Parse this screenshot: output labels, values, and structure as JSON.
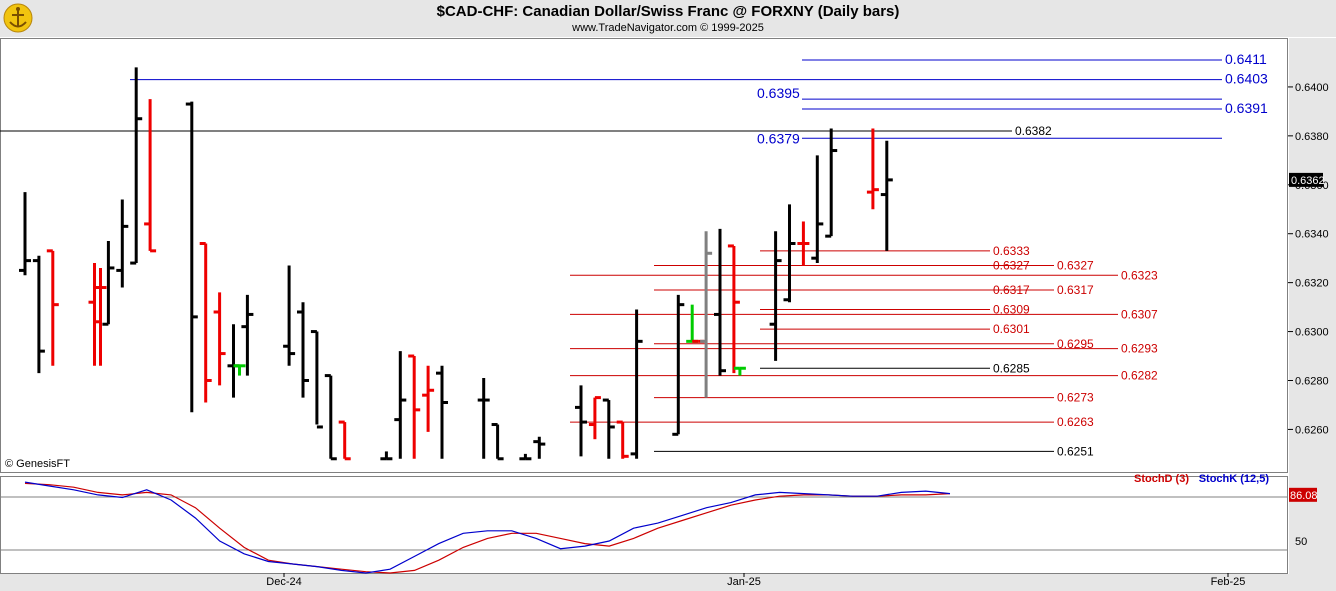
{
  "header": {
    "title": "$CAD-CHF:  Canadian Dollar/Swiss Franc @ FORXNY  (Daily bars)",
    "subtitle": "www.TradeNavigator.com © 1999-2025"
  },
  "watermark": "© GenesisFT",
  "colors": {
    "up_bar": "#000000",
    "down_bar": "#ee0000",
    "special_up": "#00cc00",
    "special_gray": "#808080",
    "resistance": "#0000cc",
    "support": "#cc0000",
    "stoch_d": "#cc0000",
    "stoch_k": "#0000cc",
    "last_price_bg": "#000000",
    "stoch_value_bg": "#cc0000"
  },
  "chart_data": [
    {
      "type": "ohlc",
      "name": "price",
      "y_axis": {
        "ticks": [
          "0.6260",
          "0.6280",
          "0.6300",
          "0.6320",
          "0.6340",
          "0.6360",
          "0.6380",
          "0.6400"
        ],
        "ylim": [
          0.6243,
          0.642
        ]
      },
      "x_axis": {
        "ticks": [
          "Dec-24",
          "Jan-25",
          "Feb-25"
        ]
      },
      "last_price": "0.6362",
      "bars": [
        {
          "date": "2024-11-20",
          "o": 0.6325,
          "h": 0.6357,
          "l": 0.6323,
          "c": 0.6329,
          "color": "up"
        },
        {
          "date": "2024-11-21",
          "o": 0.6329,
          "h": 0.6331,
          "l": 0.6283,
          "c": 0.6292,
          "color": "up"
        },
        {
          "date": "2024-11-22",
          "o": 0.6333,
          "h": 0.6333,
          "l": 0.6286,
          "c": 0.6311,
          "color": "down"
        },
        {
          "date": "2024-11-25",
          "o": 0.6312,
          "h": 0.6328,
          "l": 0.6286,
          "c": 0.6304,
          "color": "down"
        },
        {
          "date": "2024-11-25",
          "o": 0.6318,
          "h": 0.6326,
          "l": 0.6286,
          "c": 0.6318,
          "color": "down"
        },
        {
          "date": "2024-11-26",
          "o": 0.6303,
          "h": 0.6337,
          "l": 0.6303,
          "c": 0.6326,
          "color": "up"
        },
        {
          "date": "2024-11-27",
          "o": 0.6325,
          "h": 0.6354,
          "l": 0.6318,
          "c": 0.6343,
          "color": "up"
        },
        {
          "date": "2024-11-28",
          "o": 0.6328,
          "h": 0.6408,
          "l": 0.6328,
          "c": 0.6387,
          "color": "up"
        },
        {
          "date": "2024-11-29",
          "o": 0.6344,
          "h": 0.6395,
          "l": 0.6333,
          "c": 0.6333,
          "color": "down"
        },
        {
          "date": "2024-12-02",
          "o": 0.6393,
          "h": 0.6394,
          "l": 0.6267,
          "c": 0.6306,
          "color": "up"
        },
        {
          "date": "2024-12-03",
          "o": 0.6336,
          "h": 0.6336,
          "l": 0.6271,
          "c": 0.628,
          "color": "down"
        },
        {
          "date": "2024-12-04",
          "o": 0.6308,
          "h": 0.6316,
          "l": 0.6278,
          "c": 0.6291,
          "color": "down"
        },
        {
          "date": "2024-12-05",
          "o": 0.6286,
          "h": 0.6303,
          "l": 0.6273,
          "c": 0.6286,
          "color": "up"
        },
        {
          "date": "2024-12-05",
          "o": 0.6286,
          "h": 0.6286,
          "l": 0.6282,
          "c": 0.6286,
          "color": "special_up"
        },
        {
          "date": "2024-12-06",
          "o": 0.6302,
          "h": 0.6315,
          "l": 0.6282,
          "c": 0.6307,
          "color": "up"
        },
        {
          "date": "2024-12-09",
          "o": 0.6294,
          "h": 0.6327,
          "l": 0.6286,
          "c": 0.6291,
          "color": "up"
        },
        {
          "date": "2024-12-10",
          "o": 0.6308,
          "h": 0.6312,
          "l": 0.6273,
          "c": 0.628,
          "color": "up"
        },
        {
          "date": "2024-12-11",
          "o": 0.63,
          "h": 0.63,
          "l": 0.6262,
          "c": 0.6261,
          "color": "up"
        },
        {
          "date": "2024-12-12",
          "o": 0.6282,
          "h": 0.6282,
          "l": 0.6248,
          "c": 0.6248,
          "color": "up"
        },
        {
          "date": "2024-12-13",
          "o": 0.6263,
          "h": 0.6263,
          "l": 0.6248,
          "c": 0.6248,
          "color": "down"
        },
        {
          "date": "2024-12-16",
          "o": 0.6248,
          "h": 0.6251,
          "l": 0.6248,
          "c": 0.6248,
          "color": "up"
        },
        {
          "date": "2024-12-17",
          "o": 0.6264,
          "h": 0.6292,
          "l": 0.6248,
          "c": 0.6272,
          "color": "up"
        },
        {
          "date": "2024-12-18",
          "o": 0.629,
          "h": 0.629,
          "l": 0.6248,
          "c": 0.6268,
          "color": "down"
        },
        {
          "date": "2024-12-19",
          "o": 0.6274,
          "h": 0.6286,
          "l": 0.6259,
          "c": 0.6276,
          "color": "down"
        },
        {
          "date": "2024-12-20",
          "o": 0.6283,
          "h": 0.6286,
          "l": 0.6248,
          "c": 0.6271,
          "color": "up"
        },
        {
          "date": "2024-12-23",
          "o": 0.6272,
          "h": 0.6281,
          "l": 0.6248,
          "c": 0.6272,
          "color": "up"
        },
        {
          "date": "2024-12-24",
          "o": 0.6262,
          "h": 0.6262,
          "l": 0.6248,
          "c": 0.6248,
          "color": "up"
        },
        {
          "date": "2024-12-26",
          "o": 0.6248,
          "h": 0.625,
          "l": 0.6248,
          "c": 0.6248,
          "color": "up"
        },
        {
          "date": "2024-12-27",
          "o": 0.6255,
          "h": 0.6257,
          "l": 0.6248,
          "c": 0.6254,
          "color": "up"
        },
        {
          "date": "2024-12-30",
          "o": 0.6269,
          "h": 0.6278,
          "l": 0.6249,
          "c": 0.6263,
          "color": "up"
        },
        {
          "date": "2024-12-31",
          "o": 0.6262,
          "h": 0.6273,
          "l": 0.6256,
          "c": 0.6273,
          "color": "down"
        },
        {
          "date": "2025-01-01",
          "o": 0.6272,
          "h": 0.6272,
          "l": 0.6248,
          "c": 0.6261,
          "color": "up"
        },
        {
          "date": "2025-01-02",
          "o": 0.6263,
          "h": 0.6263,
          "l": 0.6248,
          "c": 0.6249,
          "color": "down"
        },
        {
          "date": "2025-01-03",
          "o": 0.625,
          "h": 0.6309,
          "l": 0.6248,
          "c": 0.6296,
          "color": "up"
        },
        {
          "date": "2025-01-06",
          "o": 0.6258,
          "h": 0.6315,
          "l": 0.6258,
          "c": 0.6311,
          "color": "up"
        },
        {
          "date": "2025-01-07",
          "o": 0.6296,
          "h": 0.6311,
          "l": 0.6296,
          "c": 0.6296,
          "color": "special_up"
        },
        {
          "date": "2025-01-07",
          "o": 0.6296,
          "h": 0.6296,
          "l": 0.6296,
          "c": 0.6296,
          "color": "down"
        },
        {
          "date": "2025-01-08",
          "o": 0.6296,
          "h": 0.6341,
          "l": 0.6273,
          "c": 0.6332,
          "color": "special_gray"
        },
        {
          "date": "2025-01-09",
          "o": 0.6307,
          "h": 0.6342,
          "l": 0.6282,
          "c": 0.6284,
          "color": "up"
        },
        {
          "date": "2025-01-10",
          "o": 0.6335,
          "h": 0.6335,
          "l": 0.6283,
          "c": 0.6312,
          "color": "down"
        },
        {
          "date": "2025-01-10",
          "o": 0.6285,
          "h": 0.6285,
          "l": 0.6282,
          "c": 0.6285,
          "color": "special_up"
        },
        {
          "date": "2025-01-13",
          "o": 0.6303,
          "h": 0.6341,
          "l": 0.6288,
          "c": 0.6329,
          "color": "up"
        },
        {
          "date": "2025-01-14",
          "o": 0.6313,
          "h": 0.6352,
          "l": 0.6312,
          "c": 0.6336,
          "color": "up"
        },
        {
          "date": "2025-01-15",
          "o": 0.6336,
          "h": 0.6345,
          "l": 0.6327,
          "c": 0.6336,
          "color": "down"
        },
        {
          "date": "2025-01-16",
          "o": 0.633,
          "h": 0.6372,
          "l": 0.6328,
          "c": 0.6344,
          "color": "up"
        },
        {
          "date": "2025-01-17",
          "o": 0.6339,
          "h": 0.6383,
          "l": 0.6339,
          "c": 0.6374,
          "color": "up"
        },
        {
          "date": "2025-01-20",
          "o": 0.6357,
          "h": 0.6383,
          "l": 0.635,
          "c": 0.6358,
          "color": "down"
        },
        {
          "date": "2025-01-21",
          "o": 0.6356,
          "h": 0.6378,
          "l": 0.6333,
          "c": 0.6362,
          "color": "up"
        }
      ],
      "levels": [
        {
          "value": "0.6411",
          "kind": "resistance"
        },
        {
          "value": "0.6403",
          "kind": "resistance"
        },
        {
          "value": "0.6395",
          "kind": "resistance"
        },
        {
          "value": "0.6391",
          "kind": "resistance"
        },
        {
          "value": "0.6382",
          "kind": "pivot"
        },
        {
          "value": "0.6379",
          "kind": "resistance"
        },
        {
          "value": "0.6333",
          "kind": "support"
        },
        {
          "value": "0.6327",
          "kind": "support"
        },
        {
          "value": "0.6327",
          "kind": "support"
        },
        {
          "value": "0.6323",
          "kind": "support"
        },
        {
          "value": "0.6317",
          "kind": "support"
        },
        {
          "value": "0.6317",
          "kind": "support"
        },
        {
          "value": "0.6309",
          "kind": "support"
        },
        {
          "value": "0.6307",
          "kind": "support"
        },
        {
          "value": "0.6301",
          "kind": "support"
        },
        {
          "value": "0.6295",
          "kind": "support"
        },
        {
          "value": "0.6293",
          "kind": "support"
        },
        {
          "value": "0.6285",
          "kind": "pivot"
        },
        {
          "value": "0.6282",
          "kind": "support"
        },
        {
          "value": "0.6273",
          "kind": "support"
        },
        {
          "value": "0.6263",
          "kind": "support"
        },
        {
          "value": "0.6251",
          "kind": "pivot"
        }
      ]
    },
    {
      "type": "line",
      "name": "stochastic",
      "legend": [
        "StochD (3)",
        "StochK (12,5)"
      ],
      "y_axis": {
        "ticks": [
          "50"
        ],
        "ylim": [
          25,
          100
        ]
      },
      "last_value": "86.08",
      "series": [
        {
          "name": "StochD (3)",
          "values": [
            95,
            94,
            92,
            88,
            86,
            88,
            86,
            76,
            60,
            45,
            35,
            32,
            30,
            28,
            26,
            25,
            27,
            35,
            45,
            52,
            56,
            56,
            52,
            48,
            46,
            52,
            60,
            66,
            72,
            78,
            82,
            85,
            86,
            86,
            85,
            85,
            86,
            86,
            87
          ]
        },
        {
          "name": "StochK (12,5)",
          "values": [
            96,
            93,
            90,
            86,
            84,
            90,
            82,
            68,
            50,
            40,
            34,
            32,
            30,
            27,
            25,
            28,
            38,
            48,
            56,
            58,
            58,
            52,
            44,
            46,
            50,
            60,
            64,
            70,
            76,
            80,
            86,
            88,
            87,
            86,
            85,
            85,
            88,
            89,
            87
          ]
        }
      ]
    }
  ]
}
